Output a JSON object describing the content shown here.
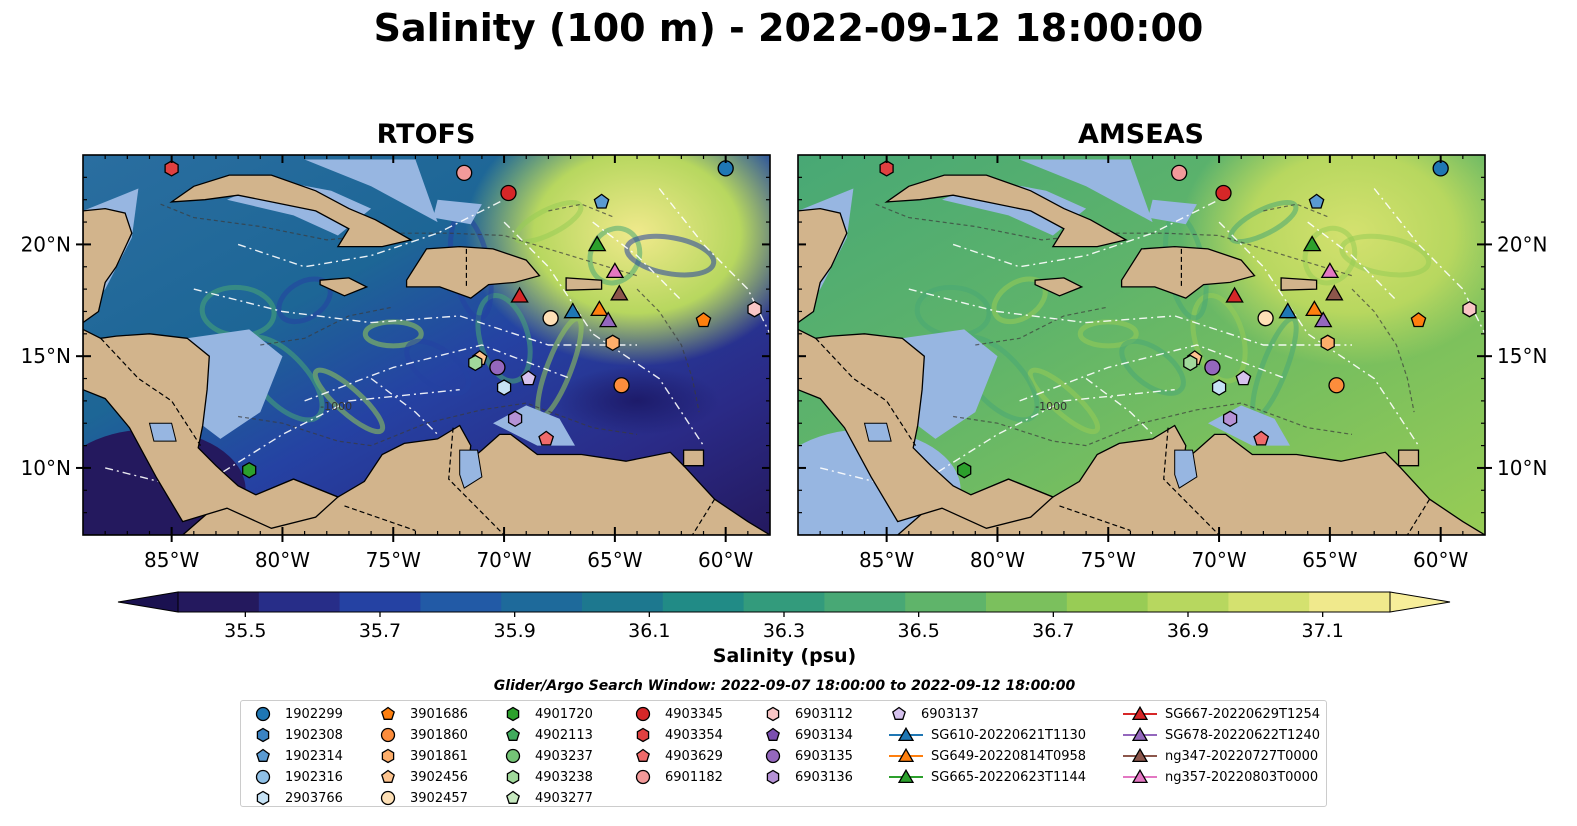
{
  "title": "Salinity (100 m) - 2022-09-12 18:00:00",
  "panels": [
    {
      "name": "RTOFS",
      "style": "rtofs"
    },
    {
      "name": "AMSEAS",
      "style": "amseas"
    }
  ],
  "map": {
    "lon_ticks": [
      "85°W",
      "80°W",
      "75°W",
      "70°W",
      "65°W",
      "60°W"
    ],
    "lon_tick_values": [
      -85,
      -80,
      -75,
      -70,
      -65,
      -60
    ],
    "lat_ticks": [
      "20°N",
      "15°N",
      "10°N"
    ],
    "lat_tick_values": [
      20,
      15,
      10
    ],
    "lon_range": [
      -89,
      -58
    ],
    "lat_range": [
      7,
      24
    ],
    "bathymetry_contour_label": "-1000",
    "land_color": "#d2b48c",
    "shallow_color": "#97b6e1"
  },
  "colorbar": {
    "label": "Salinity (psu)",
    "ticks": [
      "35.5",
      "35.7",
      "35.9",
      "36.1",
      "36.3",
      "36.5",
      "36.7",
      "36.9",
      "37.1"
    ],
    "range": [
      35.4,
      37.2
    ],
    "extend": "both",
    "colors": [
      "#24195e",
      "#272d88",
      "#2542a3",
      "#225aa6",
      "#1e6a9b",
      "#1d788f",
      "#218b86",
      "#339b7c",
      "#48a875",
      "#5fb46a",
      "#7bc05d",
      "#98cc55",
      "#b7d75f",
      "#d4e16f",
      "#f0e98c"
    ]
  },
  "legend": {
    "title": "Glider/Argo Search Window: 2022-09-07 18:00:00 to 2022-09-12 18:00:00",
    "entries": [
      {
        "label": "1902299",
        "marker": "circle",
        "color": "#1f77b4"
      },
      {
        "label": "1902308",
        "marker": "hexagon",
        "color": "#3a83c3"
      },
      {
        "label": "1902314",
        "marker": "pentagon",
        "color": "#5a9ad2"
      },
      {
        "label": "1902316",
        "marker": "circle",
        "color": "#8fc0e6"
      },
      {
        "label": "2903766",
        "marker": "hexagon",
        "color": "#c6e2f5"
      },
      {
        "label": "3901686",
        "marker": "pentagon",
        "color": "#ff7f0e"
      },
      {
        "label": "3901860",
        "marker": "circle",
        "color": "#fd8d3c"
      },
      {
        "label": "3901861",
        "marker": "hexagon",
        "color": "#fdae6b"
      },
      {
        "label": "3902456",
        "marker": "pentagon",
        "color": "#fdc48f"
      },
      {
        "label": "3902457",
        "marker": "circle",
        "color": "#fee0b6"
      },
      {
        "label": "4901720",
        "marker": "hexagon",
        "color": "#2ca02c"
      },
      {
        "label": "4902113",
        "marker": "pentagon",
        "color": "#41ab5d"
      },
      {
        "label": "4903237",
        "marker": "circle",
        "color": "#74c476"
      },
      {
        "label": "4903238",
        "marker": "hexagon",
        "color": "#a1d99b"
      },
      {
        "label": "4903277",
        "marker": "pentagon",
        "color": "#c7e9c0"
      },
      {
        "label": "4903345",
        "marker": "circle",
        "color": "#d62728"
      },
      {
        "label": "4903354",
        "marker": "hexagon",
        "color": "#e04040"
      },
      {
        "label": "4903629",
        "marker": "pentagon",
        "color": "#ef6a6a"
      },
      {
        "label": "6901182",
        "marker": "circle",
        "color": "#f29a9a"
      },
      {
        "label": "6903112",
        "marker": "hexagon",
        "color": "#f9c6c6"
      },
      {
        "label": "6903134",
        "marker": "pentagon",
        "color": "#7b4fb0"
      },
      {
        "label": "6903135",
        "marker": "circle",
        "color": "#9467bd"
      },
      {
        "label": "6903136",
        "marker": "hexagon",
        "color": "#b592d6"
      },
      {
        "label": "6903137",
        "marker": "pentagon",
        "color": "#d6c2ee"
      },
      {
        "label": "SG610-20220621T1130",
        "marker": "triangle",
        "color": "#1f77b4"
      },
      {
        "label": "SG649-20220814T0958",
        "marker": "triangle",
        "color": "#ff7f0e"
      },
      {
        "label": "SG665-20220623T1144",
        "marker": "triangle",
        "color": "#2ca02c"
      },
      {
        "label": "SG667-20220629T1254",
        "marker": "triangle",
        "color": "#d62728"
      },
      {
        "label": "SG678-20220622T1240",
        "marker": "triangle",
        "color": "#9467bd"
      },
      {
        "label": "ng347-20220727T0000",
        "marker": "triangle",
        "color": "#8c564b"
      },
      {
        "label": "ng357-20220803T0000",
        "marker": "triangle",
        "color": "#e377c2"
      }
    ]
  },
  "observations": [
    {
      "id": "1902299",
      "lon": -60.0,
      "lat": 23.4
    },
    {
      "id": "4903354",
      "lon": -85.0,
      "lat": 23.4
    },
    {
      "id": "6901182",
      "lon": -71.8,
      "lat": 23.2
    },
    {
      "id": "4903345",
      "lon": -69.8,
      "lat": 22.3
    },
    {
      "id": "1902314",
      "lon": -65.6,
      "lat": 21.9
    },
    {
      "id": "SG665-20220623T1144",
      "lon": -65.8,
      "lat": 20.0
    },
    {
      "id": "ng357-20220803T0000",
      "lon": -65.0,
      "lat": 18.8
    },
    {
      "id": "ng347-20220727T0000",
      "lon": -64.8,
      "lat": 17.8
    },
    {
      "id": "SG667-20220629T1254",
      "lon": -69.3,
      "lat": 17.7
    },
    {
      "id": "SG649-20220814T0958",
      "lon": -65.7,
      "lat": 17.1
    },
    {
      "id": "SG610-20220621T1130",
      "lon": -66.9,
      "lat": 17.0
    },
    {
      "id": "SG678-20220622T1240",
      "lon": -65.3,
      "lat": 16.6
    },
    {
      "id": "3902457",
      "lon": -67.9,
      "lat": 16.7
    },
    {
      "id": "6903112",
      "lon": -58.7,
      "lat": 17.1
    },
    {
      "id": "3901686",
      "lon": -61.0,
      "lat": 16.6
    },
    {
      "id": "3901861",
      "lon": -65.1,
      "lat": 15.6
    },
    {
      "id": "3902456",
      "lon": -71.1,
      "lat": 14.9
    },
    {
      "id": "6903135",
      "lon": -70.3,
      "lat": 14.5
    },
    {
      "id": "4903238",
      "lon": -71.3,
      "lat": 14.7
    },
    {
      "id": "6903137",
      "lon": -68.9,
      "lat": 14.0
    },
    {
      "id": "2903766",
      "lon": -70.0,
      "lat": 13.6
    },
    {
      "id": "3901860",
      "lon": -64.7,
      "lat": 13.7
    },
    {
      "id": "6903136",
      "lon": -69.5,
      "lat": 12.2
    },
    {
      "id": "4903629",
      "lon": -68.1,
      "lat": 11.3
    },
    {
      "id": "4901720",
      "lon": -81.5,
      "lat": 9.9
    }
  ]
}
